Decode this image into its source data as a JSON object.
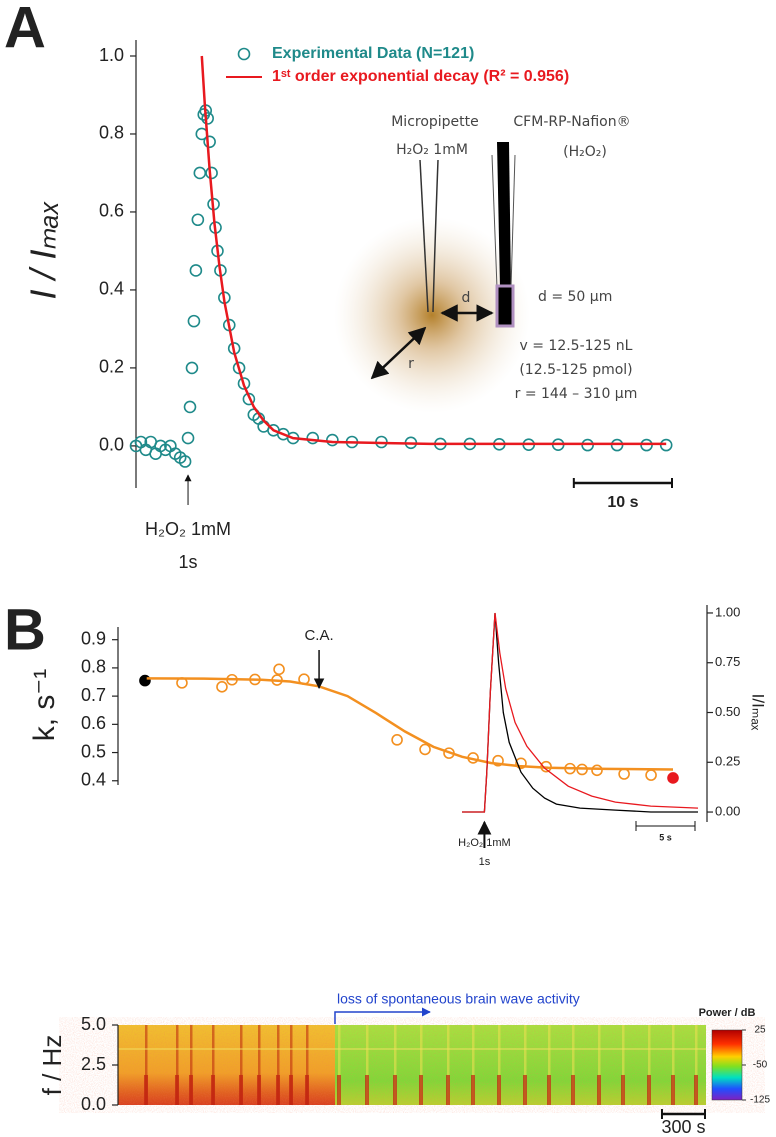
{
  "chart_data": [
    {
      "type": "scatter",
      "panel": "A",
      "ylabel": "I / Iₘₐₓ",
      "xlim": [
        0,
        55
      ],
      "ylim": [
        -0.108,
        1.0
      ],
      "yticks": [
        {
          "value": 0,
          "label": "0.0"
        },
        {
          "value": 0.2,
          "label": "0.2"
        },
        {
          "value": 0.4,
          "label": "0.4"
        },
        {
          "value": 0.6,
          "label": "0.6"
        },
        {
          "value": 0.8,
          "label": "0.8"
        },
        {
          "value": 1.0,
          "label": "1.0"
        }
      ],
      "series": [
        {
          "name": "Experimental Data (N=121)",
          "color": "#1f8a8a",
          "marker": "open-circle",
          "x": [
            0,
            0.5,
            1,
            1.5,
            2,
            2.5,
            3,
            3.5,
            4,
            4.5,
            5,
            5.3,
            5.5,
            5.7,
            5.9,
            6.1,
            6.3,
            6.5,
            6.7,
            6.9,
            7.1,
            7.3,
            7.5,
            7.7,
            7.9,
            8.1,
            8.3,
            8.6,
            9,
            9.5,
            10,
            10.5,
            11,
            11.5,
            12,
            12.5,
            13,
            14,
            15,
            16,
            18,
            20,
            22,
            25,
            28,
            31,
            34,
            37,
            40,
            43,
            46,
            49,
            52,
            54
          ],
          "values": [
            0.0,
            0.01,
            -0.01,
            0.01,
            -0.02,
            0.0,
            -0.01,
            0.0,
            -0.02,
            -0.03,
            -0.04,
            0.02,
            0.1,
            0.2,
            0.32,
            0.45,
            0.58,
            0.7,
            0.8,
            0.85,
            0.86,
            0.84,
            0.78,
            0.7,
            0.62,
            0.56,
            0.5,
            0.45,
            0.38,
            0.31,
            0.25,
            0.2,
            0.16,
            0.12,
            0.08,
            0.07,
            0.05,
            0.04,
            0.03,
            0.02,
            0.02,
            0.015,
            0.01,
            0.01,
            0.008,
            0.005,
            0.005,
            0.004,
            0.003,
            0.003,
            0.002,
            0.002,
            0.002,
            0.002
          ]
        },
        {
          "name": "1ˢᵗ order exponential decay (R² = 0.956)",
          "color": "#e8191f",
          "type": "line",
          "x": [
            6.7,
            7,
            7.5,
            8,
            8.5,
            9,
            10,
            11,
            12,
            13,
            14,
            16,
            20,
            30,
            54
          ],
          "values": [
            1.0,
            0.88,
            0.71,
            0.57,
            0.46,
            0.37,
            0.24,
            0.155,
            0.1,
            0.065,
            0.04,
            0.02,
            0.01,
            0.005,
            0.005
          ]
        }
      ],
      "scale_bar": {
        "value": 10,
        "label": "10 s"
      },
      "stimulus": {
        "x": 5.3,
        "lines": [
          "H₂O₂ 1mM",
          "1s"
        ]
      },
      "diagram": {
        "pipette": "Micropipette",
        "pipette_conc": "H₂O₂ 1mM",
        "electrode": "CFM-RP-Nafion®",
        "electrode_target": "(H₂O₂)",
        "d": "d",
        "r": "r",
        "d_value": "d = 50 µm",
        "v_value": "v = 12.5-125 nL",
        "pmol": "(12.5-125 pmol)",
        "r_value": "r = 144 – 310 µm"
      }
    },
    {
      "type": "scatter",
      "panel": "B",
      "ylabel": "k, s⁻¹",
      "xlim": [
        0,
        4100
      ],
      "ylim": [
        0.385,
        0.945
      ],
      "yticks": [
        0.4,
        0.5,
        0.6,
        0.7,
        0.8,
        0.9
      ],
      "series": [
        {
          "color": "#000000",
          "marker": "filled-circle",
          "x": [
            188
          ],
          "values": [
            0.755
          ]
        },
        {
          "color": "#f39020",
          "marker": "open-circle",
          "x": [
            446,
            725,
            795,
            955,
            1109,
            1123,
            1297,
            1946,
            2141,
            2308,
            2476,
            2650,
            2810,
            2985,
            3152,
            3236,
            3340,
            3529,
            3717
          ],
          "values": [
            0.747,
            0.733,
            0.758,
            0.759,
            0.757,
            0.795,
            0.76,
            0.545,
            0.511,
            0.498,
            0.481,
            0.471,
            0.462,
            0.45,
            0.443,
            0.44,
            0.437,
            0.424,
            0.42
          ]
        },
        {
          "color": "#e8191f",
          "marker": "filled-circle",
          "x": [
            3870
          ],
          "values": [
            0.41
          ]
        },
        {
          "color": "#f39020",
          "type": "line",
          "x": [
            200,
            600,
            1000,
            1200,
            1400,
            1600,
            1800,
            2000,
            2200,
            2400,
            2600,
            2800,
            3000,
            3400,
            3870
          ],
          "values": [
            0.763,
            0.762,
            0.758,
            0.752,
            0.735,
            0.7,
            0.64,
            0.575,
            0.52,
            0.485,
            0.463,
            0.452,
            0.446,
            0.442,
            0.44
          ]
        }
      ],
      "annotation": {
        "text": "C.A.",
        "x": 1402
      }
    },
    {
      "type": "line",
      "ylabel": "I/Iₘₐₓ",
      "xlim": [
        0,
        20
      ],
      "ylim": [
        -0.05,
        1.04
      ],
      "yticks": [
        {
          "value": 0,
          "label": "0.00"
        },
        {
          "value": 0.25,
          "label": "0.25"
        },
        {
          "value": 0.5,
          "label": "0.50"
        },
        {
          "value": 0.75,
          "label": "0.75"
        },
        {
          "value": 1,
          "label": "1.00"
        }
      ],
      "series": [
        {
          "color": "#000000",
          "x": [
            0,
            1.9,
            2.1,
            2.4,
            2.8,
            3.1,
            3.5,
            4,
            5,
            6,
            7,
            8,
            10,
            13,
            16,
            20
          ],
          "values": [
            0,
            0,
            0.2,
            0.6,
            1.0,
            0.75,
            0.5,
            0.35,
            0.2,
            0.12,
            0.07,
            0.04,
            0.02,
            0.01,
            0.0,
            0.0
          ]
        },
        {
          "color": "#e8191f",
          "x": [
            0,
            1.9,
            2.1,
            2.4,
            2.8,
            3.2,
            3.7,
            4.5,
            5.5,
            7,
            9,
            11,
            13,
            16,
            20
          ],
          "values": [
            0,
            0,
            0.2,
            0.6,
            1.0,
            0.8,
            0.62,
            0.45,
            0.33,
            0.22,
            0.13,
            0.08,
            0.05,
            0.03,
            0.02
          ]
        }
      ],
      "scale_bar": {
        "value": 5,
        "label": "5 s"
      },
      "stimulus": {
        "x": 1.9,
        "lines": [
          "H₂O₂ 1mM",
          "1s"
        ]
      }
    },
    {
      "type": "heatmap",
      "ylabel": "f / Hz",
      "xlim": [
        0,
        4100
      ],
      "ylim": [
        0,
        5
      ],
      "yticks": [
        {
          "value": 0,
          "label": "0.0"
        },
        {
          "value": 2.5,
          "label": "2.5"
        },
        {
          "value": 5,
          "label": "5.0"
        }
      ],
      "colorbar": {
        "title": "Power / dB",
        "clim": [
          -125,
          25
        ],
        "ticks": [
          25,
          -50,
          -125
        ]
      },
      "annotation": {
        "text": "loss of spontaneous brain wave activity",
        "x": 1513
      },
      "scale_bar": {
        "value": 300,
        "label": "300 s"
      }
    }
  ]
}
